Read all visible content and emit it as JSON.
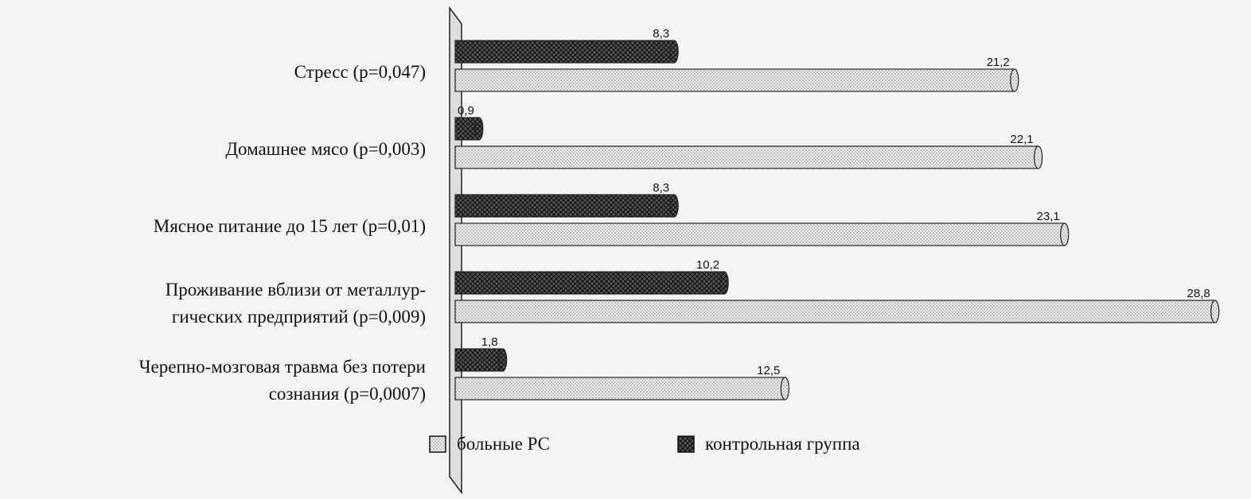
{
  "chart_data": {
    "type": "bar",
    "orientation": "horizontal",
    "categories": [
      "Стресс (p=0,047)",
      "Домашнее мясо (p=0,003)",
      "Мясное питание до 15 лет (p=0,01)",
      "Проживание вблизи от металлур-\nгических предприятий  (p=0,009)",
      "Черепно-мозговая травма без потери\nсознания (p=0,0007)"
    ],
    "series": [
      {
        "name": "контрольная группа",
        "color": "#555555",
        "values": [
          8.3,
          0.9,
          8.3,
          10.2,
          1.8
        ],
        "value_labels": [
          "8,3",
          "0,9",
          "8,3",
          "10,2",
          "1,8"
        ]
      },
      {
        "name": "больные РС",
        "color": "#e8e8e8",
        "values": [
          21.2,
          22.1,
          23.1,
          28.8,
          12.5
        ],
        "value_labels": [
          "21,2",
          "22,1",
          "23,1",
          "28,8",
          "12,5"
        ]
      }
    ],
    "legend_order": [
      1,
      0
    ]
  }
}
